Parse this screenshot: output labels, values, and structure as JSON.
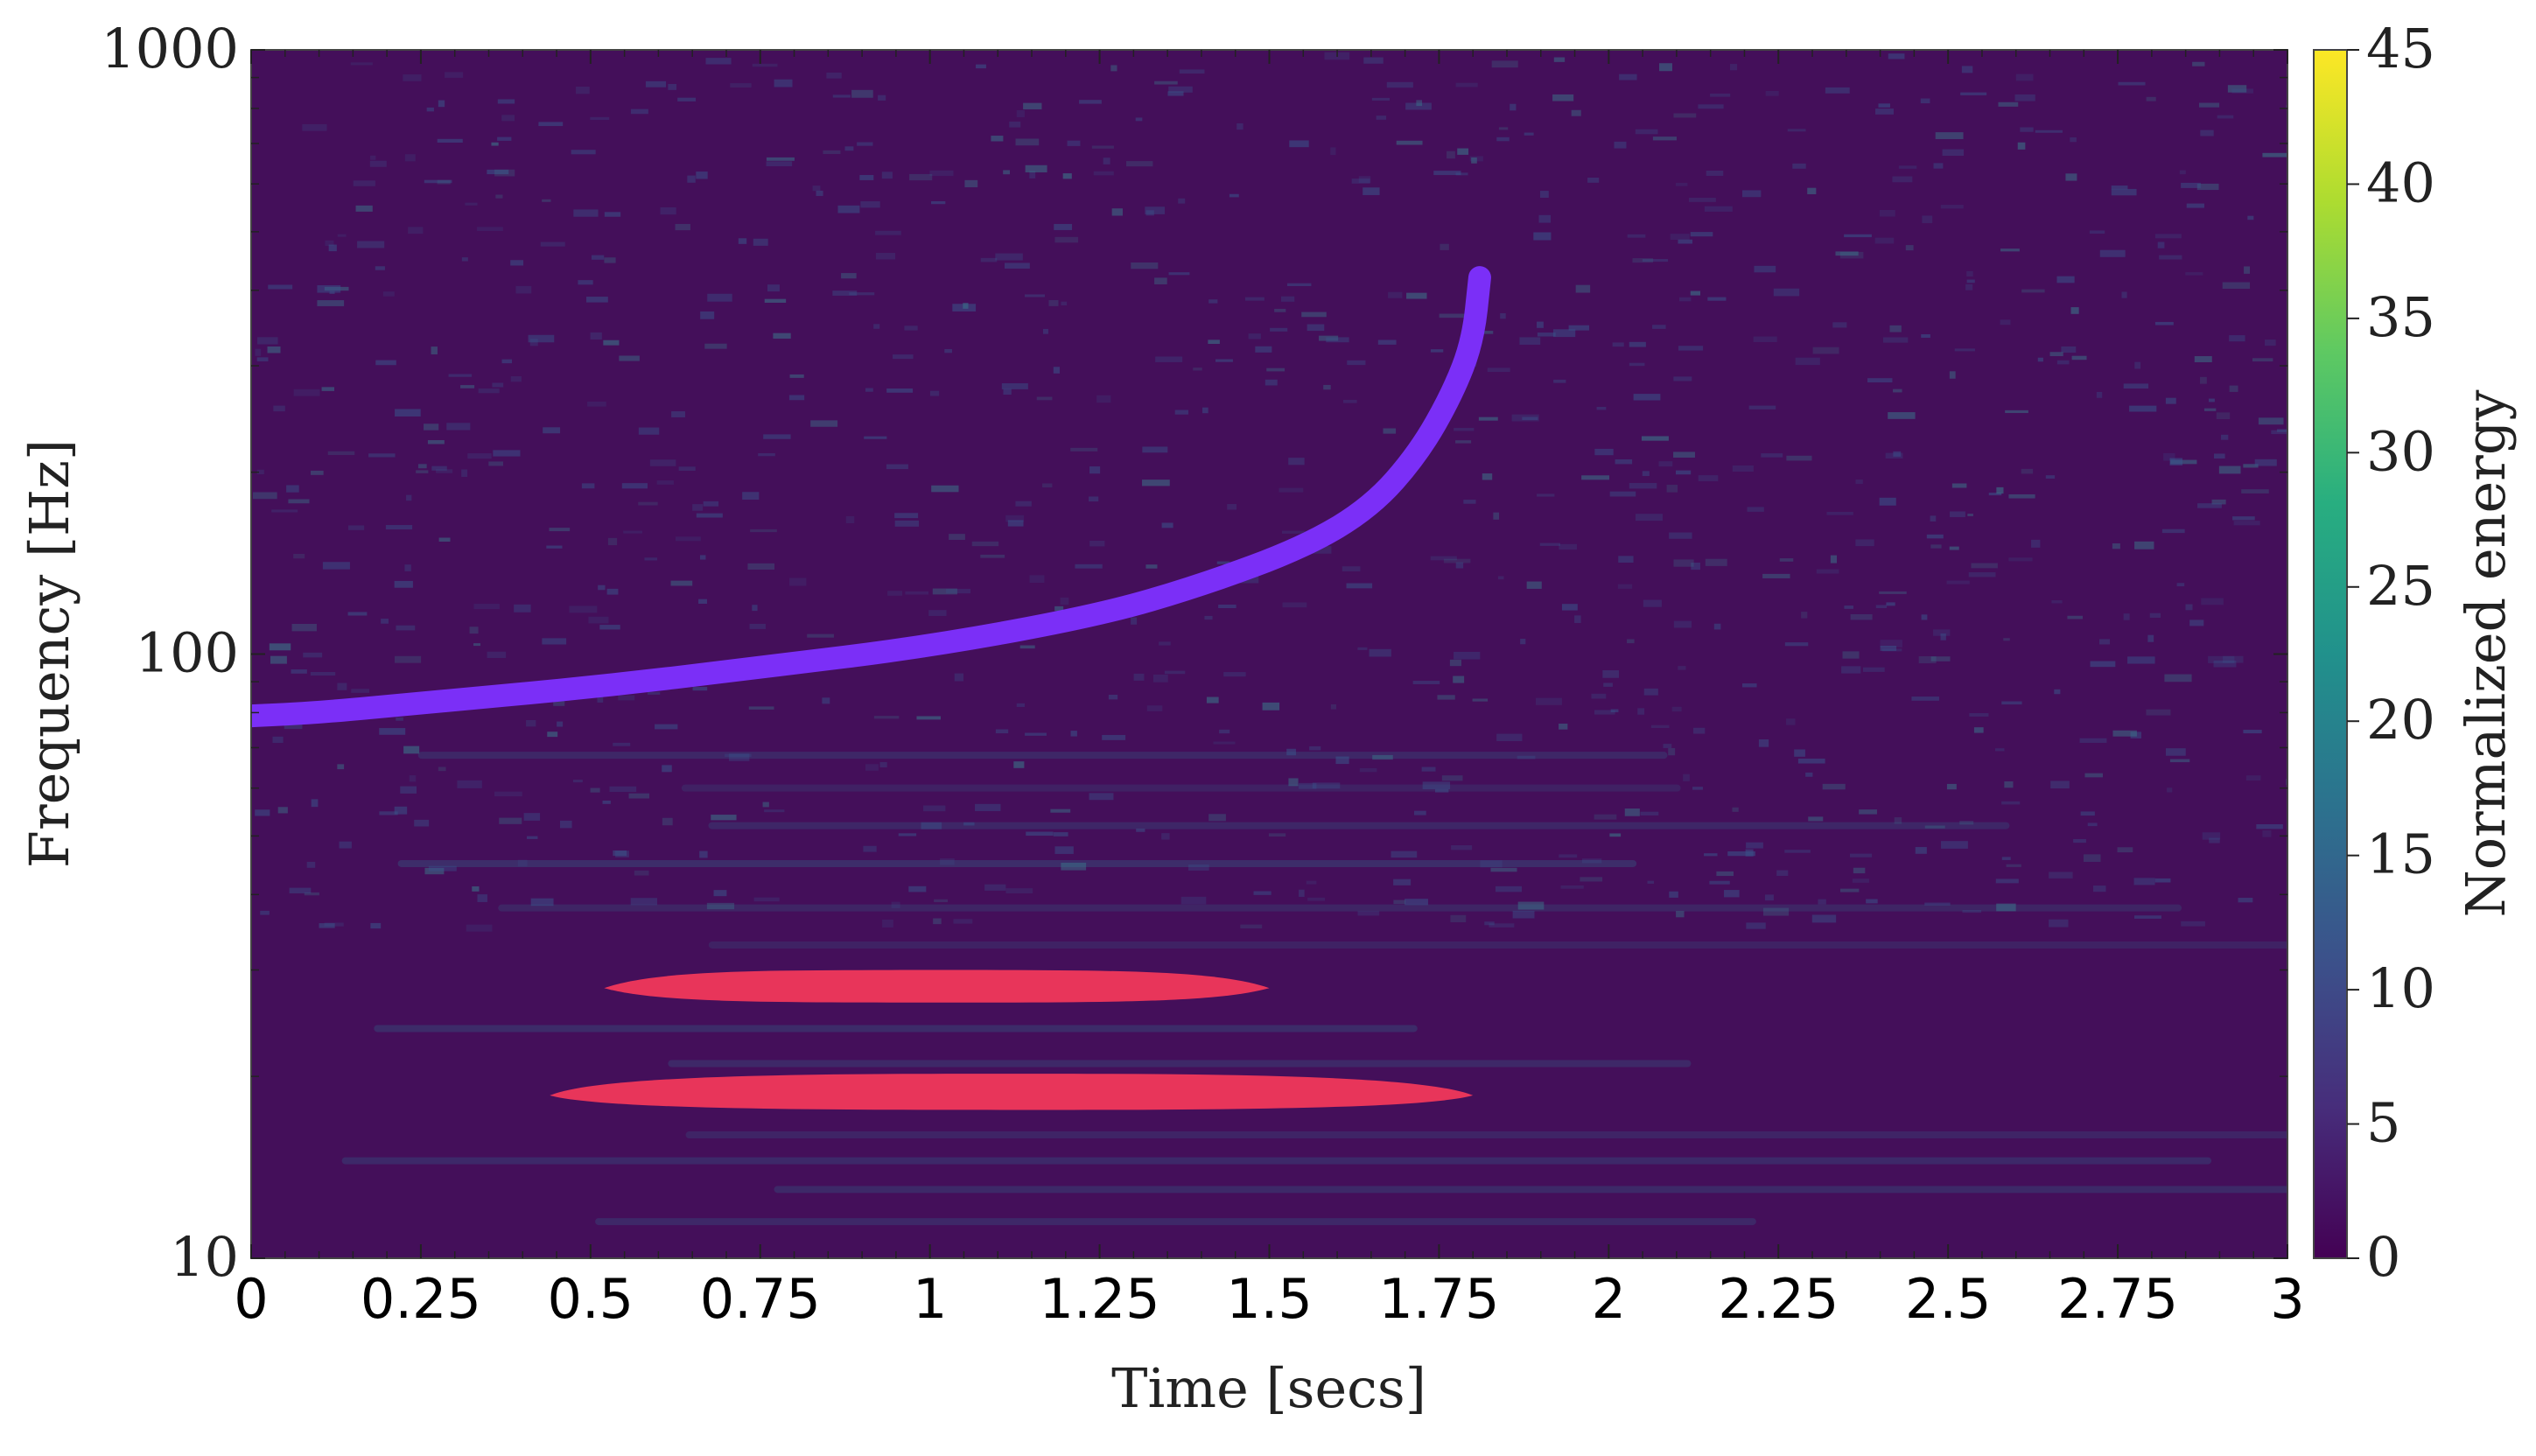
{
  "chart_data": {
    "type": "heatmap",
    "xlabel": "Time [secs]",
    "ylabel": "Frequency [Hz]",
    "colorbar_label": "Normalized energy",
    "xlim": [
      0,
      3
    ],
    "ylim": [
      10,
      1000
    ],
    "y_scale": "log",
    "x_ticks": [
      0,
      0.25,
      0.5,
      0.75,
      1,
      1.25,
      1.5,
      1.75,
      2,
      2.25,
      2.5,
      2.75,
      3
    ],
    "x_tick_labels": [
      "0",
      "0.25",
      "0.5",
      "0.75",
      "1",
      "1.25",
      "1.5",
      "1.75",
      "2",
      "2.25",
      "2.5",
      "2.75",
      "3"
    ],
    "y_ticks": [
      10,
      100,
      1000
    ],
    "y_tick_labels": [
      "10",
      "100",
      "1000"
    ],
    "colorbar_range": [
      0,
      45
    ],
    "colorbar_ticks": [
      0,
      5,
      10,
      15,
      20,
      25,
      30,
      35,
      40,
      45
    ],
    "colorbar_tick_labels": [
      "0",
      "5",
      "10",
      "15",
      "20",
      "25",
      "30",
      "35",
      "40",
      "45"
    ],
    "colormap": "viridis",
    "background_color": "#440f5a",
    "chirp_track": {
      "color": "#7b2ff7",
      "points": [
        [
          0,
          79
        ],
        [
          0.1,
          80
        ],
        [
          0.25,
          83
        ],
        [
          0.5,
          88
        ],
        [
          0.75,
          95
        ],
        [
          1,
          103
        ],
        [
          1.25,
          116
        ],
        [
          1.4,
          130
        ],
        [
          1.55,
          150
        ],
        [
          1.65,
          175
        ],
        [
          1.72,
          215
        ],
        [
          1.77,
          270
        ],
        [
          1.8,
          330
        ],
        [
          1.81,
          420
        ]
      ]
    },
    "bands": [
      {
        "color": "#e8355a",
        "t_start": 0.52,
        "t_end": 1.5,
        "freq_center": 28,
        "freq_low": 26.5,
        "freq_high": 30
      },
      {
        "color": "#e8355a",
        "t_start": 0.44,
        "t_end": 1.8,
        "freq_center": 18.6,
        "freq_low": 17.6,
        "freq_high": 20.2
      }
    ]
  }
}
